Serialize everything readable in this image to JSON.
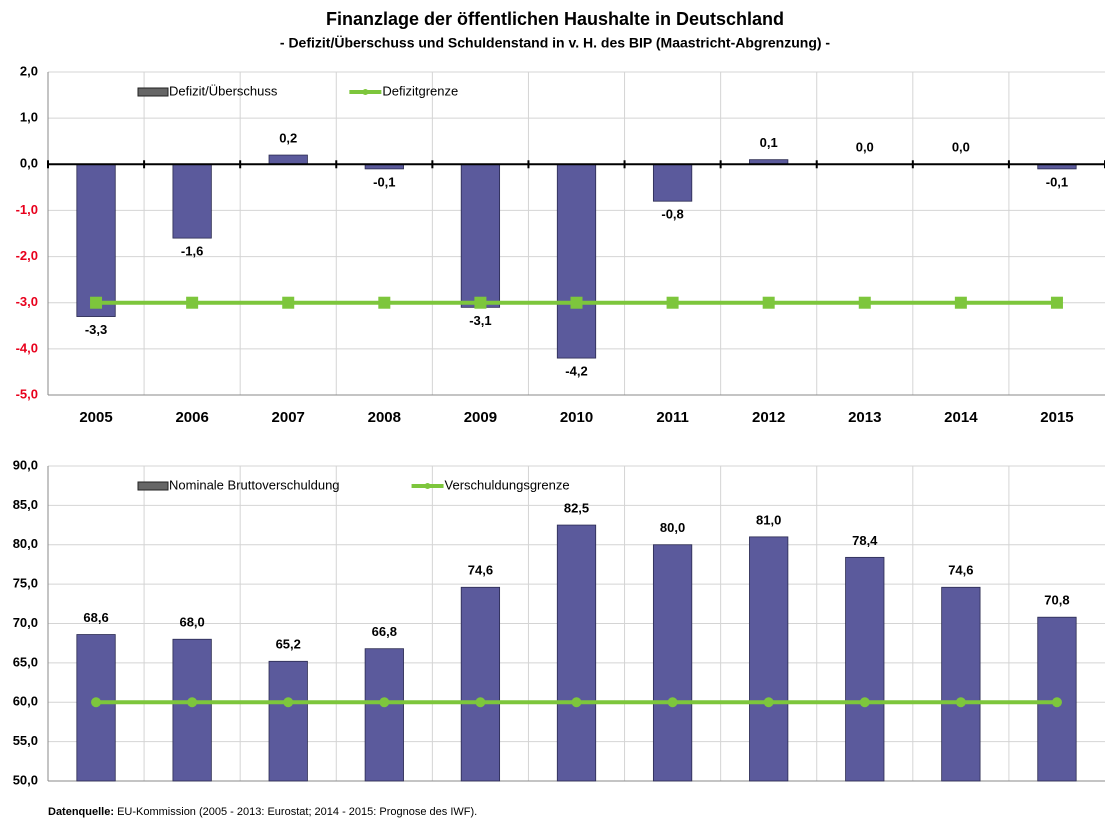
{
  "title": "Finanzlage der öffentlichen Haushalte in Deutschland",
  "subtitle": "- Defizit/Überschuss und Schuldenstand in v. H. des BIP (Maastricht-Abgrenzung) -",
  "source": {
    "label": "Datenquelle:",
    "text": "EU-Kommission (2005 - 2013: Eurostat; 2014 - 2015: Prognose des IWF)."
  },
  "chart_data": [
    {
      "type": "combo",
      "categories": [
        "2005",
        "2006",
        "2007",
        "2008",
        "2009",
        "2010",
        "2011",
        "2012",
        "2013",
        "2014",
        "2015"
      ],
      "ylim": [
        -5,
        2
      ],
      "yticks": [
        {
          "value": -5,
          "label": "-5,0"
        },
        {
          "value": -4,
          "label": "-4,0"
        },
        {
          "value": -3,
          "label": "-3,0"
        },
        {
          "value": -2,
          "label": "-2,0"
        },
        {
          "value": -1,
          "label": "-1,0"
        },
        {
          "value": 0,
          "label": "0,0"
        },
        {
          "value": 1,
          "label": "1,0"
        },
        {
          "value": 2,
          "label": "2,0"
        }
      ],
      "negative_tick_color": "#e8001c",
      "grid": true,
      "series": [
        {
          "name": "Defizit/Überschuss",
          "type": "bar",
          "color": "#5b5a9c",
          "values": [
            -3.3,
            -1.6,
            0.2,
            -0.1,
            -3.1,
            -4.2,
            -0.8,
            0.1,
            0.0,
            0.0,
            -0.1
          ],
          "value_labels": [
            "-3,3",
            "-1,6",
            "0,2",
            "-0,1",
            "-3,1",
            "-4,2",
            "-0,8",
            "0,1",
            "0,0",
            "0,0",
            "-0,1"
          ]
        },
        {
          "name": "Defizitgrenze",
          "type": "line",
          "color": "#7dc63c",
          "marker": "square",
          "values": [
            -3,
            -3,
            -3,
            -3,
            -3,
            -3,
            -3,
            -3,
            -3,
            -3,
            -3
          ]
        }
      ]
    },
    {
      "type": "combo",
      "categories": [
        null,
        null,
        null,
        null,
        null,
        null,
        null,
        null,
        null,
        null,
        null
      ],
      "ylim": [
        50,
        90
      ],
      "yticks": [
        {
          "value": 50,
          "label": "50,0"
        },
        {
          "value": 55,
          "label": "55,0"
        },
        {
          "value": 60,
          "label": "60,0"
        },
        {
          "value": 65,
          "label": "65,0"
        },
        {
          "value": 70,
          "label": "70,0"
        },
        {
          "value": 75,
          "label": "75,0"
        },
        {
          "value": 80,
          "label": "80,0"
        },
        {
          "value": 85,
          "label": "85,0"
        },
        {
          "value": 90,
          "label": "90,0"
        }
      ],
      "grid": true,
      "series": [
        {
          "name": "Nominale Bruttoverschuldung",
          "type": "bar",
          "color": "#5b5a9c",
          "values": [
            68.6,
            68.0,
            65.2,
            66.8,
            74.6,
            82.5,
            80.0,
            81.0,
            78.4,
            74.6,
            70.8
          ],
          "value_labels": [
            "68,6",
            "68,0",
            "65,2",
            "66,8",
            "74,6",
            "82,5",
            "80,0",
            "81,0",
            "78,4",
            "74,6",
            "70,8"
          ]
        },
        {
          "name": "Verschuldungsgrenze",
          "type": "line",
          "color": "#7dc63c",
          "marker": "circle",
          "values": [
            60,
            60,
            60,
            60,
            60,
            60,
            60,
            60,
            60,
            60,
            60
          ]
        }
      ]
    }
  ]
}
